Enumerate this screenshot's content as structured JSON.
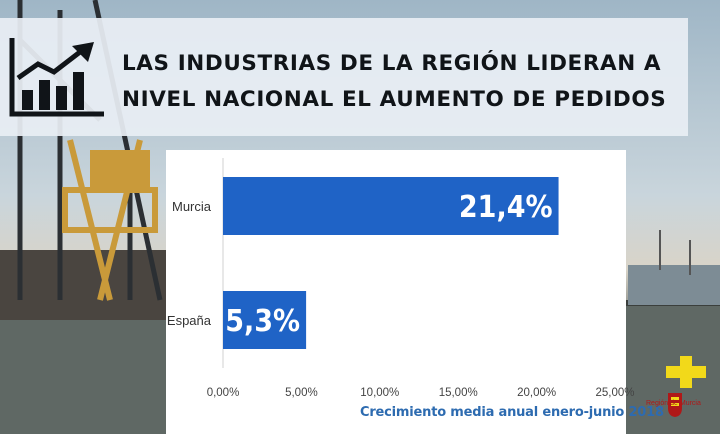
{
  "banner": {
    "title": "Las industrias de la Región lideran a nivel nacional el aumento de pedidos",
    "icon": "growth-chart-icon"
  },
  "chart_data": {
    "type": "bar",
    "orientation": "horizontal",
    "categories": [
      "Murcia",
      "España"
    ],
    "values": [
      21.4,
      5.3
    ],
    "value_labels": [
      "21,4%",
      "5,3%"
    ],
    "title": "Crecimiento media anual enero-junio 2018",
    "xlabel": "",
    "ylabel": "",
    "xlim": [
      0,
      25
    ],
    "x_ticks": [
      0,
      5,
      10,
      15,
      20,
      25
    ],
    "x_tick_labels": [
      "0,00%",
      "5,00%",
      "10,00%",
      "15,00%",
      "20,00%",
      "25,00%"
    ],
    "bar_color": "#1f63c6"
  },
  "logo": {
    "text": "Región de Murcia",
    "colors": {
      "yellow": "#f2d91a",
      "red": "#b01818"
    }
  }
}
